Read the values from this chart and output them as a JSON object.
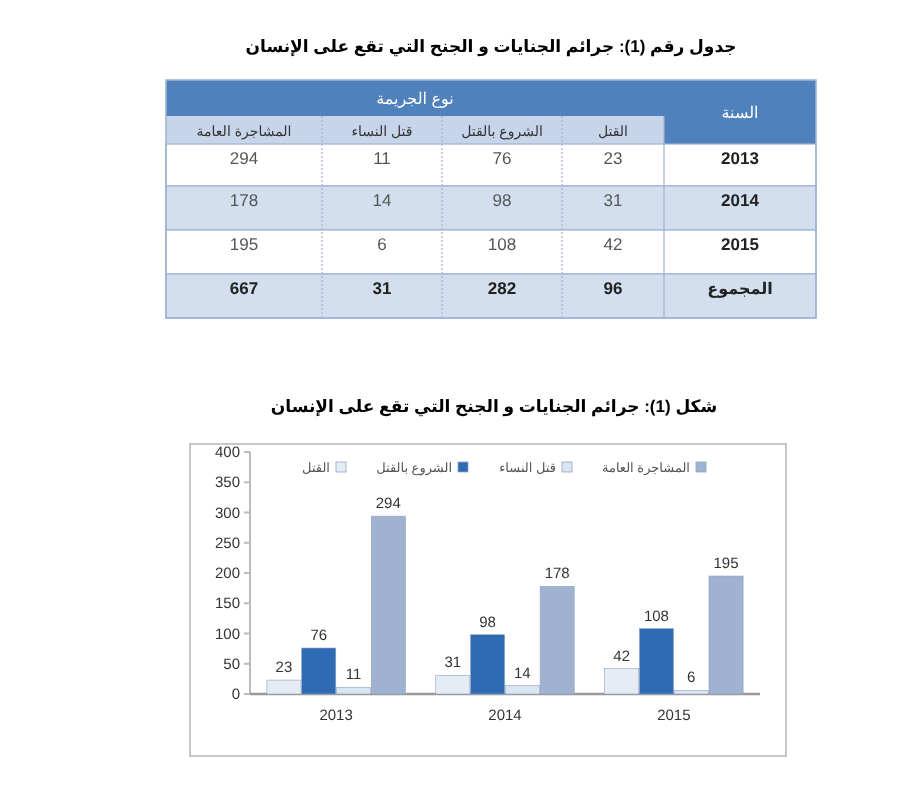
{
  "chart_data": [
    {
      "type": "other",
      "title": "جدول رقم (1): جرائم الجنايات و الجنح التي تقع على الإنسان",
      "annotations": [
        "السنة",
        "نوع الجريمة",
        "القتل",
        "الشروع بالقتل",
        "قتل النساء",
        "المشاجرة العامة",
        "2013",
        "23",
        "76",
        "11",
        "294",
        "2014",
        "31",
        "98",
        "14",
        "178",
        "2015",
        "42",
        "108",
        "6",
        "195",
        "المجموع",
        "96",
        "282",
        "31",
        "667"
      ]
    },
    {
      "type": "bar",
      "title": "شكل (1): جرائم الجنايات و الجنح التي تقع على الإنسان",
      "categories": [
        "2013",
        "2014",
        "2015"
      ],
      "series": [
        {
          "name": "القتل",
          "color": "#e6ecf4",
          "values": [
            23,
            31,
            42
          ]
        },
        {
          "name": "الشروع بالقتل",
          "color": "#2f6bb2",
          "values": [
            76,
            98,
            108
          ]
        },
        {
          "name": "قتل النساء",
          "color": "#dbe5f1",
          "values": [
            11,
            14,
            6
          ]
        },
        {
          "name": "المشاجرة العامة",
          "color": "#9fb3d1",
          "values": [
            294,
            178,
            195
          ]
        }
      ],
      "ylim": [
        0,
        400
      ],
      "yticks": [
        0,
        50,
        100,
        150,
        200,
        250,
        300,
        350,
        400
      ],
      "data_labels": true,
      "legend": "top right",
      "grid": false
    }
  ]
}
